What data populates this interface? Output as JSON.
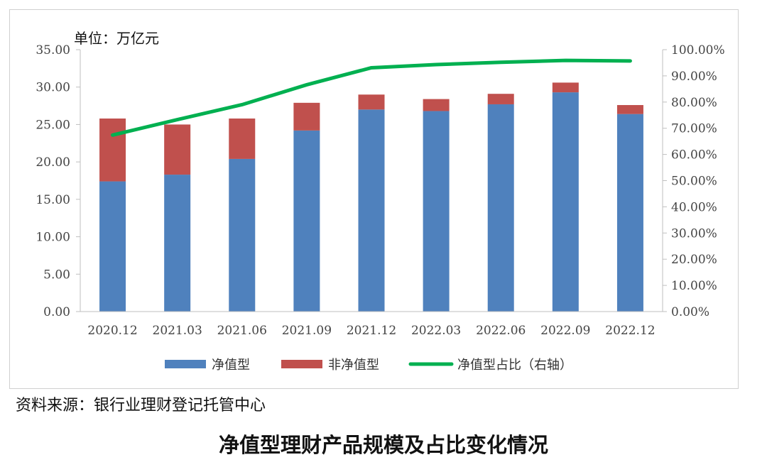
{
  "chart_data": {
    "type": "bar",
    "stacked": true,
    "unit_label": "单位：万亿元",
    "categories": [
      "2020.12",
      "2021.03",
      "2021.06",
      "2021.09",
      "2021.12",
      "2022.03",
      "2022.06",
      "2022.09",
      "2022.12"
    ],
    "series": [
      {
        "name": "净值型",
        "type": "bar",
        "axis": "left",
        "color": "#4F81BD",
        "values": [
          17.4,
          18.3,
          20.4,
          24.2,
          27.0,
          26.8,
          27.7,
          29.3,
          26.4
        ]
      },
      {
        "name": "非净值型",
        "type": "bar",
        "axis": "left",
        "color": "#C0504D",
        "values": [
          8.4,
          6.7,
          5.4,
          3.7,
          2.0,
          1.6,
          1.4,
          1.3,
          1.2
        ]
      },
      {
        "name": "净值型占比（右轴）",
        "type": "line",
        "axis": "right",
        "color": "#00B050",
        "values": [
          0.674,
          0.733,
          0.79,
          0.866,
          0.931,
          0.943,
          0.952,
          0.959,
          0.957
        ]
      }
    ],
    "left_axis": {
      "min": 0,
      "max": 35,
      "step": 5,
      "tick_labels": [
        "0.00",
        "5.00",
        "10.00",
        "15.00",
        "20.00",
        "25.00",
        "30.00",
        "35.00"
      ]
    },
    "right_axis": {
      "min": 0,
      "max": 1,
      "step": 0.1,
      "tick_labels": [
        "0.00%",
        "10.00%",
        "20.00%",
        "30.00%",
        "40.00%",
        "50.00%",
        "60.00%",
        "70.00%",
        "80.00%",
        "90.00%",
        "100.00%"
      ]
    },
    "grid": false,
    "legend_position": "bottom"
  },
  "source_text": "资料来源：银行业理财登记托管中心",
  "caption": "净值型理财产品规模及占比变化情况"
}
